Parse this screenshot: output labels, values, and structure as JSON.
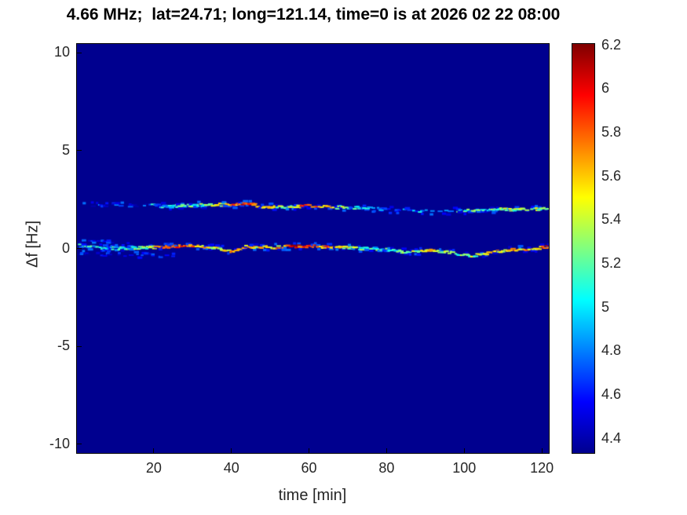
{
  "chart_data": {
    "type": "heatmap",
    "title": "4.66 MHz;  lat=24.71; long=121.14, time=0 is at 2026 02 22 08:00",
    "xlabel": "time [min]",
    "ylabel": "Δf [Hz]",
    "xlim": [
      0,
      122
    ],
    "ylim": [
      -10.5,
      10.5
    ],
    "xticks": [
      20,
      40,
      60,
      80,
      100,
      120
    ],
    "yticks": [
      -10,
      -5,
      0,
      5,
      10
    ],
    "grid": false,
    "legend": "none",
    "background_color": "#00008f",
    "colorbar": {
      "min": 4.33,
      "max": 6.21,
      "ticks": [
        4.4,
        4.6,
        4.8,
        5,
        5.2,
        5.4,
        5.6,
        5.8,
        6,
        6.2
      ],
      "position": "right"
    },
    "colormap": {
      "name": "jet",
      "stops": [
        [
          0,
          "#00008f"
        ],
        [
          0.125,
          "#0000ff"
        ],
        [
          0.375,
          "#00ffff"
        ],
        [
          0.625,
          "#ffff00"
        ],
        [
          0.875,
          "#ff0000"
        ],
        [
          1,
          "#800000"
        ]
      ]
    },
    "traces": [
      {
        "name": "doppler-trace-0Hz",
        "x": [
          1,
          6,
          12,
          18,
          24,
          30,
          36,
          40,
          44,
          50,
          56,
          62,
          68,
          74,
          80,
          86,
          92,
          98,
          102,
          108,
          114,
          119,
          122
        ],
        "y": [
          0.15,
          0.05,
          0.0,
          0.05,
          0.1,
          0.15,
          0.05,
          -0.15,
          0.1,
          0.05,
          0.1,
          0.1,
          0.05,
          0.0,
          -0.05,
          -0.2,
          -0.1,
          -0.25,
          -0.4,
          -0.15,
          -0.05,
          0.0,
          0.1
        ],
        "value": [
          4.95,
          5.0,
          5.05,
          5.15,
          5.9,
          5.85,
          5.35,
          5.6,
          5.5,
          5.45,
          5.9,
          5.85,
          5.6,
          5.1,
          5.05,
          5.25,
          5.5,
          5.35,
          5.25,
          5.5,
          5.55,
          5.6,
          5.9
        ],
        "density": [
          0.85,
          0.9,
          0.9,
          0.9,
          0.92,
          0.92,
          0.9,
          0.9,
          0.9,
          0.9,
          0.92,
          0.92,
          0.9,
          0.85,
          0.85,
          0.85,
          0.88,
          0.88,
          0.88,
          0.9,
          0.92,
          0.92,
          0.92
        ]
      },
      {
        "name": "doppler-trace-2Hz",
        "x": [
          19,
          24,
          30,
          36,
          40,
          44,
          48,
          54,
          58,
          62,
          66,
          70,
          75,
          80,
          86,
          92,
          98,
          104,
          110,
          116,
          120,
          122
        ],
        "y": [
          2.2,
          2.15,
          2.2,
          2.25,
          2.2,
          2.3,
          2.15,
          2.1,
          2.15,
          2.2,
          2.1,
          2.1,
          2.05,
          2.0,
          1.95,
          1.9,
          1.9,
          1.95,
          2.0,
          2.0,
          2.0,
          2.05
        ],
        "value": [
          4.9,
          5.0,
          5.15,
          5.3,
          5.7,
          5.9,
          5.6,
          5.2,
          5.8,
          5.85,
          5.5,
          5.1,
          4.95,
          4.85,
          4.8,
          4.9,
          5.0,
          5.2,
          5.2,
          5.3,
          5.25,
          5.4
        ],
        "density": [
          0.85,
          0.9,
          0.9,
          0.9,
          0.9,
          0.9,
          0.9,
          0.9,
          0.9,
          0.9,
          0.88,
          0.85,
          0.6,
          0.45,
          0.4,
          0.45,
          0.5,
          0.8,
          0.85,
          0.85,
          0.85,
          0.85
        ]
      },
      {
        "name": "echo-2Hz-early",
        "x": [
          2,
          18
        ],
        "y": [
          2.2,
          2.2
        ],
        "value": [
          4.55,
          4.6
        ],
        "density": [
          0.3,
          0.35
        ]
      },
      {
        "name": "echo-0Hz-below",
        "x": [
          1,
          26
        ],
        "y": [
          -0.3,
          -0.35
        ],
        "value": [
          4.5,
          4.55
        ],
        "density": [
          0.35,
          0.3
        ]
      },
      {
        "name": "echo-0Hz-above",
        "x": [
          1,
          16
        ],
        "y": [
          0.35,
          0.3
        ],
        "value": [
          4.5,
          4.5
        ],
        "density": [
          0.28,
          0.22
        ]
      }
    ]
  }
}
